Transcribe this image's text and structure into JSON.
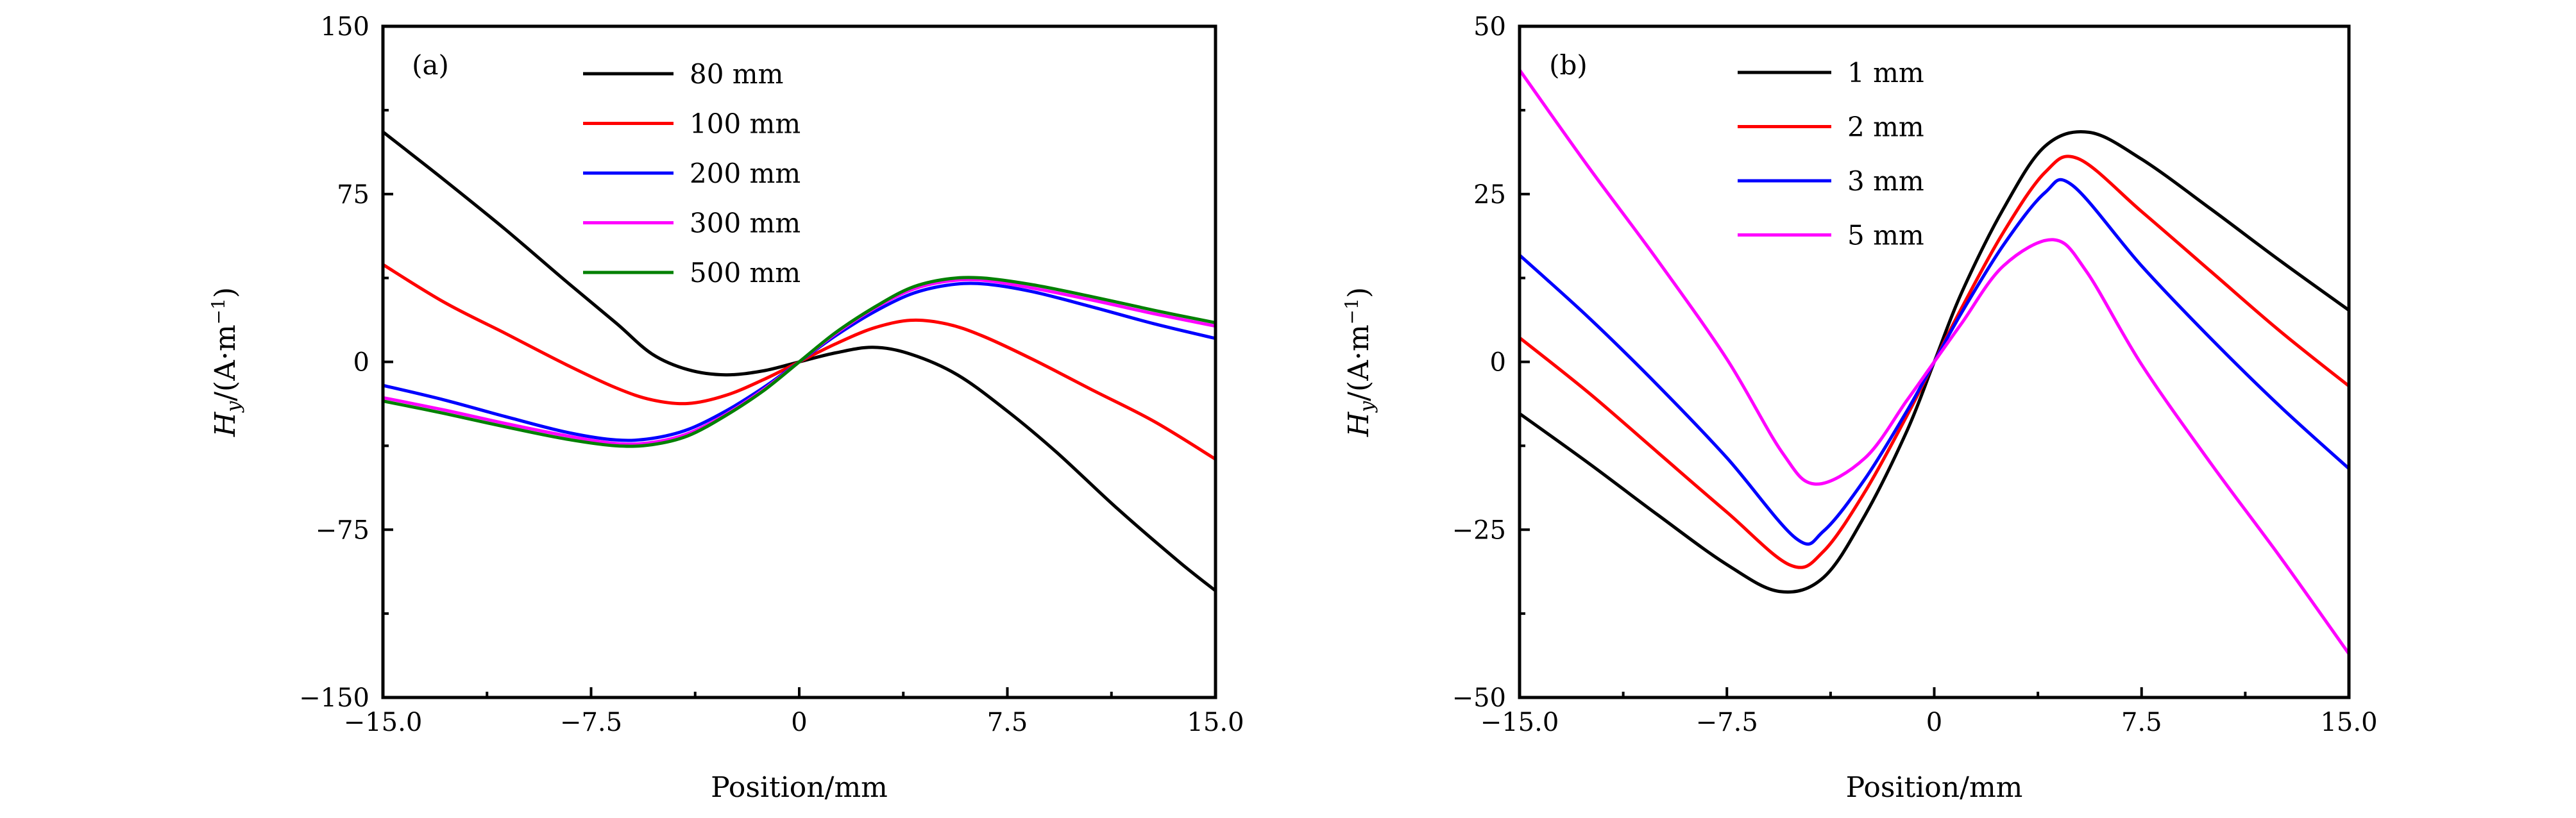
{
  "chart_data": [
    {
      "type": "line",
      "panel_label": "(a)",
      "xlabel": "Position/mm",
      "ylabel": {
        "main": "H",
        "sub": "y",
        "unit": "/(A·m",
        "sup": "−1",
        "close": ")"
      },
      "xlim": [
        -15,
        15
      ],
      "ylim": [
        -150,
        150
      ],
      "xticks": {
        "values": [
          -15,
          -7.5,
          0,
          7.5,
          15
        ],
        "labels": [
          "−15.0",
          "−7.5",
          "0",
          "7.5",
          "15.0"
        ]
      },
      "yticks": {
        "values": [
          -150,
          -75,
          0,
          75,
          150
        ],
        "labels": [
          "−150",
          "−75",
          "0",
          "75",
          "150"
        ]
      },
      "grid": false,
      "legend_position": "top-center",
      "series": [
        {
          "name": "80 mm",
          "color": "#000000",
          "x": [
            -15,
            -12.8,
            -10.6,
            -8.4,
            -6.6,
            -5.3,
            -4,
            -2.65,
            -1.3,
            0,
            1.3,
            2.65,
            4,
            5.7,
            7.5,
            9.3,
            11.5,
            13.7,
            15
          ],
          "y": [
            102.8,
            81.4,
            59.3,
            36,
            17.4,
            3.5,
            -3.5,
            -5.8,
            -4,
            0,
            4,
            6.5,
            3.5,
            -5.8,
            -22,
            -40.7,
            -66,
            -89.5,
            -102.3
          ]
        },
        {
          "name": "100 mm",
          "color": "#ff0000",
          "x": [
            -15,
            -12.8,
            -10.6,
            -8.4,
            -6.6,
            -5.3,
            -4,
            -2.65,
            -1.3,
            0,
            1.3,
            2.65,
            4,
            5.3,
            6.6,
            8.4,
            10.6,
            12.8,
            15
          ],
          "y": [
            43.5,
            26.7,
            12.8,
            -1.2,
            -11.6,
            -17,
            -18.6,
            -15,
            -8,
            0,
            8,
            15,
            18.6,
            17,
            11.6,
            1.2,
            -12.8,
            -26.7,
            -43.5
          ]
        },
        {
          "name": "200 mm",
          "color": "#0000ff",
          "x": [
            -15,
            -12.8,
            -10.6,
            -8.4,
            -6.6,
            -5.3,
            -4,
            -2.65,
            -1.3,
            0,
            1.3,
            2.65,
            4,
            5.3,
            6.6,
            8.4,
            10.6,
            12.8,
            15
          ],
          "y": [
            -10.5,
            -17,
            -24.4,
            -31.4,
            -34.9,
            -34.2,
            -30.2,
            -22,
            -11.6,
            0,
            11.6,
            22,
            30.2,
            34.2,
            34.9,
            31.4,
            24.4,
            17,
            10.5
          ]
        },
        {
          "name": "300 mm",
          "color": "#ff00ff",
          "x": [
            -15,
            -12.8,
            -10.6,
            -8.4,
            -6.6,
            -5.3,
            -4,
            -2.65,
            -1.3,
            0,
            1.3,
            2.65,
            4,
            5.3,
            6.6,
            8.4,
            10.6,
            12.8,
            15
          ],
          "y": [
            -16,
            -21.5,
            -27.5,
            -33,
            -36.5,
            -36,
            -32,
            -23.5,
            -12.5,
            0,
            12.5,
            23.5,
            32,
            36,
            36.5,
            33,
            27.5,
            21.5,
            16
          ]
        },
        {
          "name": "500 mm",
          "color": "#008000",
          "x": [
            -15,
            -12.8,
            -10.6,
            -8.4,
            -6.6,
            -5.3,
            -4,
            -2.65,
            -1.3,
            0,
            1.3,
            2.65,
            4,
            5.3,
            6.6,
            8.4,
            10.6,
            12.8,
            15
          ],
          "y": [
            -17.5,
            -23,
            -29,
            -34.5,
            -37.5,
            -37,
            -33,
            -24,
            -13,
            0,
            13,
            24,
            33,
            37,
            37.5,
            34.5,
            29,
            23,
            17.5
          ]
        }
      ]
    },
    {
      "type": "line",
      "panel_label": "(b)",
      "xlabel": "Position/mm",
      "ylabel": {
        "main": "H",
        "sub": "y",
        "unit": "/(A·m",
        "sup": "−1",
        "close": ")"
      },
      "xlim": [
        -15,
        15
      ],
      "ylim": [
        -50,
        50
      ],
      "xticks": {
        "values": [
          -15,
          -7.5,
          0,
          7.5,
          15
        ],
        "labels": [
          "−15.0",
          "−7.5",
          "0",
          "7.5",
          "15.0"
        ]
      },
      "yticks": {
        "values": [
          -50,
          -25,
          0,
          25,
          50
        ],
        "labels": [
          "−50",
          "−25",
          "0",
          "25",
          "50"
        ]
      },
      "grid": false,
      "legend_position": "top-center",
      "series": [
        {
          "name": "1 mm",
          "color": "#000000",
          "x": [
            -15,
            -12.5,
            -10,
            -7.5,
            -5.6,
            -4,
            -2.5,
            -1,
            0,
            1,
            2.5,
            4,
            5.6,
            7.5,
            10,
            12.5,
            15
          ],
          "y": [
            -7.7,
            -15.1,
            -22.8,
            -30.2,
            -34.2,
            -32.1,
            -22.8,
            -10.4,
            0,
            10.4,
            22.8,
            32.1,
            34.2,
            30.2,
            22.8,
            15.1,
            7.7
          ]
        },
        {
          "name": "2 mm",
          "color": "#ff0000",
          "x": [
            -15,
            -12.5,
            -10,
            -7.5,
            -5.2,
            -4,
            -2.5,
            -1,
            0,
            1,
            2.5,
            4,
            5.2,
            7.5,
            10,
            12.5,
            15
          ],
          "y": [
            3.6,
            -4.6,
            -13.5,
            -22.4,
            -30.3,
            -28.2,
            -19.3,
            -8.1,
            0,
            8.1,
            19.3,
            28.2,
            30.3,
            22.4,
            13.5,
            4.6,
            -3.6
          ]
        },
        {
          "name": "3 mm",
          "color": "#0000ff",
          "x": [
            -15,
            -12.5,
            -10,
            -7.5,
            -5,
            -4,
            -2.5,
            -1,
            0,
            1,
            2.5,
            4,
            5,
            7.5,
            10,
            12.5,
            15
          ],
          "y": [
            15.9,
            6.6,
            -3.5,
            -14.3,
            -26.3,
            -25.2,
            -17.4,
            -7.4,
            0,
            7.4,
            17.4,
            25.2,
            26.3,
            14.3,
            3.5,
            -6.6,
            -15.9
          ]
        },
        {
          "name": "5 mm",
          "color": "#ff00ff",
          "x": [
            -15,
            -12.5,
            -10,
            -7.5,
            -5.5,
            -4.3,
            -2.5,
            -1,
            0,
            1,
            2.5,
            4.3,
            5.5,
            7.5,
            10,
            12.5,
            15
          ],
          "y": [
            43.5,
            29,
            15.1,
            0.4,
            -13.5,
            -18.2,
            -14.3,
            -5.8,
            0,
            5.8,
            14.3,
            18.2,
            13.5,
            -0.4,
            -15.1,
            -29,
            -43.5
          ]
        }
      ]
    }
  ]
}
